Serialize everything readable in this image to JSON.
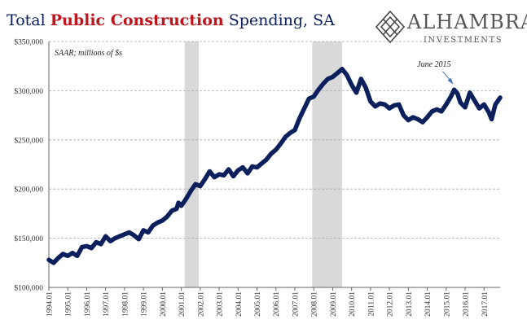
{
  "title": {
    "part1": "Total ",
    "part2": "Public Construction",
    "part3": " Spending, SA",
    "highlight_color": "#c0141c",
    "base_color": "#0a1f5c"
  },
  "logo": {
    "name": "ALHAMBRA",
    "subtitle": "INVESTMENTS",
    "icon": "diamond-lattice-icon"
  },
  "chart_data": {
    "type": "line",
    "note": "SAAR; millions of $s",
    "annotation": {
      "text": "June 2015",
      "target_x": 2015.42,
      "target_y": 303000
    },
    "line_color": "#0a1f5c",
    "grid": true,
    "ylim": [
      100000,
      350000
    ],
    "xlim": [
      1994.0,
      2017.85
    ],
    "y_ticks": [
      {
        "value": 100000,
        "label": "$100,000"
      },
      {
        "value": 150000,
        "label": "$150,000"
      },
      {
        "value": 200000,
        "label": "$200,000"
      },
      {
        "value": 250000,
        "label": "$250,000"
      },
      {
        "value": 300000,
        "label": "$300,000"
      },
      {
        "value": 350000,
        "label": "$350,000"
      }
    ],
    "x_ticks": [
      {
        "value": 1994,
        "label": "1994.01"
      },
      {
        "value": 1995,
        "label": "1995.01"
      },
      {
        "value": 1996,
        "label": "1996.01"
      },
      {
        "value": 1997,
        "label": "1997.01"
      },
      {
        "value": 1998,
        "label": "1998.01"
      },
      {
        "value": 1999,
        "label": "1999.01"
      },
      {
        "value": 2000,
        "label": "2000.01"
      },
      {
        "value": 2001,
        "label": "2001.01"
      },
      {
        "value": 2002,
        "label": "2002.01"
      },
      {
        "value": 2003,
        "label": "2003.01"
      },
      {
        "value": 2004,
        "label": "2004.01"
      },
      {
        "value": 2005,
        "label": "2005.01"
      },
      {
        "value": 2006,
        "label": "2006.01"
      },
      {
        "value": 2007,
        "label": "2007.01"
      },
      {
        "value": 2008,
        "label": "2008.01"
      },
      {
        "value": 2009,
        "label": "2009.01"
      },
      {
        "value": 2010,
        "label": "2010.01"
      },
      {
        "value": 2011,
        "label": "2011.01"
      },
      {
        "value": 2012,
        "label": "2012.01"
      },
      {
        "value": 2013,
        "label": "2013.01"
      },
      {
        "value": 2014,
        "label": "2014.01"
      },
      {
        "value": 2015,
        "label": "2015.01"
      },
      {
        "value": 2016,
        "label": "2016.01"
      },
      {
        "value": 2017,
        "label": "2017.01"
      }
    ],
    "recessions": [
      {
        "start": 2001.17,
        "end": 2001.92,
        "color": "#d9d9d9"
      },
      {
        "start": 2007.92,
        "end": 2009.5,
        "color": "#d9d9d9"
      }
    ],
    "series": [
      {
        "points": [
          [
            1994.0,
            128000
          ],
          [
            1994.25,
            125000
          ],
          [
            1994.5,
            130000
          ],
          [
            1994.75,
            134000
          ],
          [
            1995.0,
            132000
          ],
          [
            1995.25,
            135000
          ],
          [
            1995.5,
            132000
          ],
          [
            1995.75,
            141000
          ],
          [
            1996.0,
            142000
          ],
          [
            1996.25,
            140000
          ],
          [
            1996.5,
            146000
          ],
          [
            1996.75,
            144000
          ],
          [
            1997.0,
            152000
          ],
          [
            1997.25,
            147000
          ],
          [
            1997.5,
            150000
          ],
          [
            1997.75,
            152000
          ],
          [
            1998.0,
            154000
          ],
          [
            1998.25,
            156000
          ],
          [
            1998.5,
            153000
          ],
          [
            1998.75,
            149000
          ],
          [
            1999.0,
            158000
          ],
          [
            1999.25,
            156000
          ],
          [
            1999.5,
            163000
          ],
          [
            1999.75,
            166000
          ],
          [
            2000.0,
            168000
          ],
          [
            2000.25,
            172000
          ],
          [
            2000.5,
            178000
          ],
          [
            2000.75,
            180000
          ],
          [
            2000.85,
            186000
          ],
          [
            2001.0,
            183000
          ],
          [
            2001.25,
            190000
          ],
          [
            2001.5,
            198000
          ],
          [
            2001.75,
            205000
          ],
          [
            2002.0,
            203000
          ],
          [
            2002.25,
            210000
          ],
          [
            2002.5,
            218000
          ],
          [
            2002.75,
            212000
          ],
          [
            2003.0,
            215000
          ],
          [
            2003.25,
            214000
          ],
          [
            2003.5,
            220000
          ],
          [
            2003.75,
            213000
          ],
          [
            2004.0,
            219000
          ],
          [
            2004.25,
            222000
          ],
          [
            2004.5,
            216000
          ],
          [
            2004.75,
            223000
          ],
          [
            2005.0,
            222000
          ],
          [
            2005.25,
            226000
          ],
          [
            2005.5,
            230000
          ],
          [
            2005.75,
            236000
          ],
          [
            2006.0,
            240000
          ],
          [
            2006.25,
            246000
          ],
          [
            2006.5,
            253000
          ],
          [
            2006.75,
            257000
          ],
          [
            2007.0,
            260000
          ],
          [
            2007.25,
            272000
          ],
          [
            2007.5,
            282000
          ],
          [
            2007.75,
            292000
          ],
          [
            2008.0,
            294000
          ],
          [
            2008.25,
            301000
          ],
          [
            2008.5,
            307000
          ],
          [
            2008.75,
            312000
          ],
          [
            2009.0,
            314000
          ],
          [
            2009.25,
            318000
          ],
          [
            2009.5,
            322000
          ],
          [
            2009.75,
            316000
          ],
          [
            2010.0,
            306000
          ],
          [
            2010.25,
            298000
          ],
          [
            2010.5,
            312000
          ],
          [
            2010.75,
            303000
          ],
          [
            2011.0,
            289000
          ],
          [
            2011.25,
            284000
          ],
          [
            2011.5,
            287000
          ],
          [
            2011.75,
            286000
          ],
          [
            2012.0,
            282000
          ],
          [
            2012.25,
            285000
          ],
          [
            2012.5,
            286000
          ],
          [
            2012.75,
            275000
          ],
          [
            2013.0,
            270000
          ],
          [
            2013.25,
            273000
          ],
          [
            2013.5,
            271000
          ],
          [
            2013.75,
            268000
          ],
          [
            2014.0,
            273000
          ],
          [
            2014.25,
            279000
          ],
          [
            2014.5,
            281000
          ],
          [
            2014.75,
            279000
          ],
          [
            2015.0,
            286000
          ],
          [
            2015.25,
            294000
          ],
          [
            2015.42,
            301000
          ],
          [
            2015.6,
            297000
          ],
          [
            2015.75,
            288000
          ],
          [
            2016.0,
            283000
          ],
          [
            2016.25,
            298000
          ],
          [
            2016.5,
            290000
          ],
          [
            2016.75,
            282000
          ],
          [
            2017.0,
            286000
          ],
          [
            2017.25,
            278000
          ],
          [
            2017.4,
            271000
          ],
          [
            2017.6,
            286000
          ],
          [
            2017.85,
            293000
          ]
        ]
      }
    ]
  }
}
